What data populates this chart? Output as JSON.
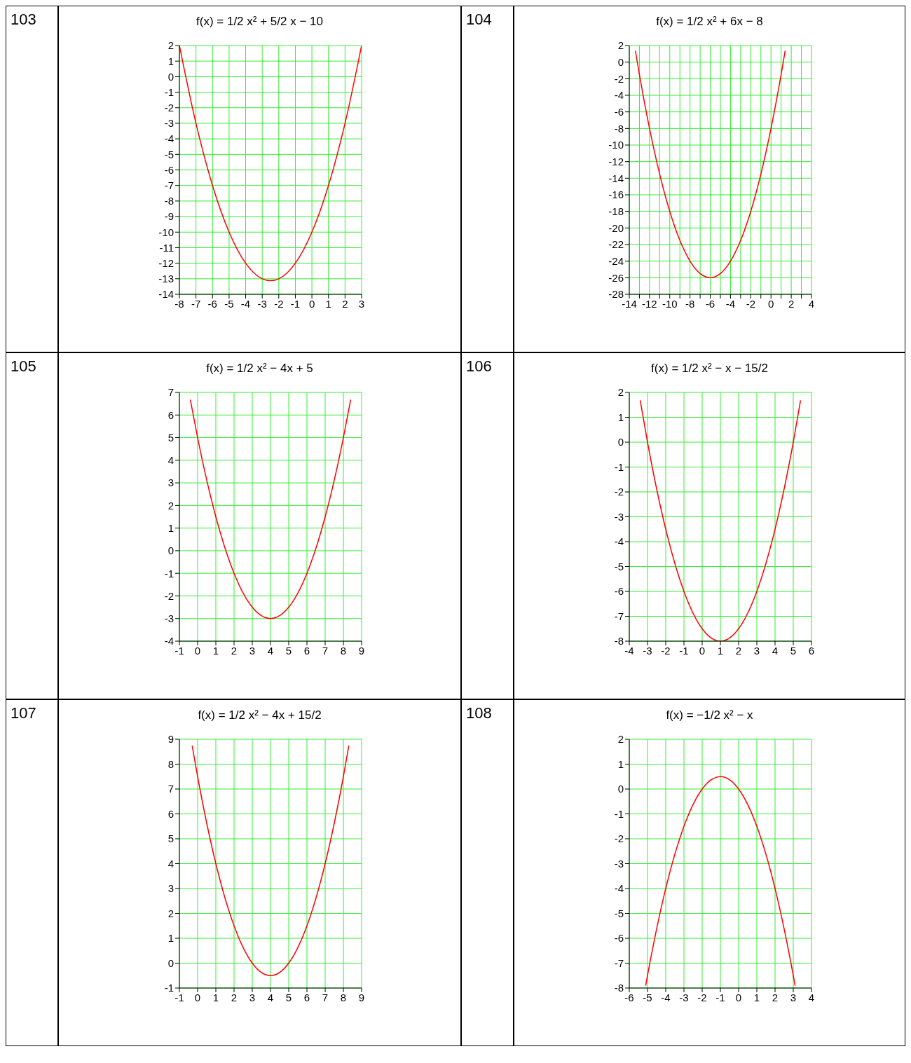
{
  "chart_data": [
    {
      "type": "line",
      "title": "f(x) = 1/2 x² + 5/2 x − 10",
      "annotations": [
        "103"
      ],
      "x": [
        -8,
        -7,
        -6,
        -5,
        -4,
        -3,
        -2.5,
        -2,
        -1,
        0,
        1,
        2,
        3
      ],
      "series": [
        {
          "color": "#ff0000",
          "values": [
            2,
            -3,
            -7,
            -10,
            -12,
            -13,
            -13.125,
            -13,
            -12,
            -10,
            -7,
            -3,
            2
          ]
        }
      ],
      "xlim": [
        -8,
        3
      ],
      "xticks": [
        -8,
        -7,
        -6,
        -5,
        -4,
        -3,
        -2,
        -1,
        0,
        1,
        2,
        3
      ],
      "ylim": [
        -14,
        2
      ],
      "yticks": [
        -14,
        -13,
        -12,
        -11,
        -10,
        -9,
        -8,
        -7,
        -6,
        -5,
        -4,
        -3,
        -2,
        -1,
        0,
        1,
        2
      ],
      "grid": true,
      "marker": "none"
    },
    {
      "type": "line",
      "title": "f(x) = 1/2 x² + 6x − 8",
      "annotations": [
        "104"
      ],
      "x": [
        -13.4,
        -13,
        -12,
        -11,
        -10,
        -9,
        -8,
        -7,
        -6,
        -5,
        -4,
        -3,
        -2,
        -1,
        0,
        1,
        1.4
      ],
      "series": [
        {
          "color": "#ff0000",
          "values": [
            1.38,
            -1.5,
            -8,
            -13.5,
            -18,
            -21.5,
            -24,
            -25.5,
            -26,
            -25.5,
            -24,
            -21.5,
            -18,
            -13.5,
            -8,
            -1.5,
            1.38
          ]
        }
      ],
      "xlim": [
        -14,
        4
      ],
      "xticks": [
        -14,
        {
          "value": -13,
          "label": null
        },
        -12,
        {
          "value": -11,
          "label": null
        },
        -10,
        {
          "value": -9,
          "label": null
        },
        -8,
        {
          "value": -7,
          "label": null
        },
        -6,
        {
          "value": -5,
          "label": null
        },
        -4,
        {
          "value": -3,
          "label": null
        },
        -2,
        {
          "value": -1,
          "label": null
        },
        0,
        {
          "value": 1,
          "label": null
        },
        2,
        {
          "value": 3,
          "label": null
        },
        4
      ],
      "ylim": [
        -28,
        2
      ],
      "yticks": [
        -28,
        -26,
        -24,
        -22,
        -20,
        -18,
        -16,
        -14,
        -12,
        -10,
        -8,
        -6,
        -4,
        -2,
        0,
        2
      ],
      "grid": true,
      "marker": "none"
    },
    {
      "type": "line",
      "title": "f(x) = 1/2 x² − 4x + 5",
      "annotations": [
        "105"
      ],
      "x": [
        -0.4,
        0,
        1,
        2,
        3,
        4,
        5,
        6,
        7,
        8,
        8.4
      ],
      "series": [
        {
          "color": "#ff0000",
          "values": [
            6.68,
            5,
            1.5,
            -1,
            -2.5,
            -3,
            -2.5,
            -1,
            1.5,
            5,
            6.68
          ]
        }
      ],
      "xlim": [
        -1,
        9
      ],
      "xticks": [
        -1,
        0,
        1,
        2,
        3,
        4,
        5,
        6,
        7,
        8,
        9
      ],
      "ylim": [
        -4,
        7
      ],
      "yticks": [
        -4,
        -3,
        -2,
        -1,
        0,
        1,
        2,
        3,
        4,
        5,
        6,
        7
      ],
      "grid": true,
      "marker": "none"
    },
    {
      "type": "line",
      "title": "f(x) = 1/2 x² − x − 15/2",
      "annotations": [
        "106"
      ],
      "x": [
        -3.4,
        -3,
        -2,
        -1,
        0,
        1,
        2,
        3,
        4,
        5,
        5.4
      ],
      "series": [
        {
          "color": "#ff0000",
          "values": [
            1.68,
            0,
            -3.5,
            -6,
            -7.5,
            -8,
            -7.5,
            -6,
            -3.5,
            0,
            1.68
          ]
        }
      ],
      "xlim": [
        -4,
        6
      ],
      "xticks": [
        -4,
        -3,
        -2,
        -1,
        0,
        1,
        2,
        3,
        4,
        5,
        6
      ],
      "ylim": [
        -8,
        2
      ],
      "yticks": [
        -8,
        -7,
        -6,
        -5,
        -4,
        -3,
        -2,
        -1,
        0,
        1,
        2
      ],
      "grid": true,
      "marker": "none"
    },
    {
      "type": "line",
      "title": "f(x) = 1/2 x² − 4x + 15/2",
      "annotations": [
        "107"
      ],
      "x": [
        -0.3,
        0,
        1,
        2,
        3,
        4,
        5,
        6,
        7,
        8,
        8.3
      ],
      "series": [
        {
          "color": "#ff0000",
          "values": [
            8.745,
            7.5,
            4,
            1.5,
            0,
            -0.5,
            0,
            1.5,
            4,
            7.5,
            8.745
          ]
        }
      ],
      "xlim": [
        -1,
        9
      ],
      "xticks": [
        -1,
        0,
        1,
        2,
        3,
        4,
        5,
        6,
        7,
        8,
        9
      ],
      "ylim": [
        -1,
        9
      ],
      "yticks": [
        -1,
        0,
        1,
        2,
        3,
        4,
        5,
        6,
        7,
        8,
        9
      ],
      "grid": true,
      "marker": "none"
    },
    {
      "type": "line",
      "title": "f(x) = −1/2 x² − x",
      "annotations": [
        "108"
      ],
      "x": [
        -5.1,
        -5,
        -4,
        -3,
        -2,
        -1,
        0,
        1,
        2,
        3,
        3.1
      ],
      "series": [
        {
          "color": "#ff0000",
          "values": [
            -7.905,
            -7.5,
            -4,
            -1.5,
            0,
            0.5,
            0,
            -1.5,
            -4,
            -7.5,
            -7.905
          ]
        }
      ],
      "xlim": [
        -6,
        4
      ],
      "xticks": [
        -6,
        -5,
        -4,
        -3,
        -2,
        -1,
        0,
        1,
        2,
        3,
        4
      ],
      "ylim": [
        -8,
        2
      ],
      "yticks": [
        -8,
        -7,
        -6,
        -5,
        -4,
        -3,
        -2,
        -1,
        0,
        1,
        2
      ],
      "grid": true,
      "marker": "none"
    }
  ]
}
